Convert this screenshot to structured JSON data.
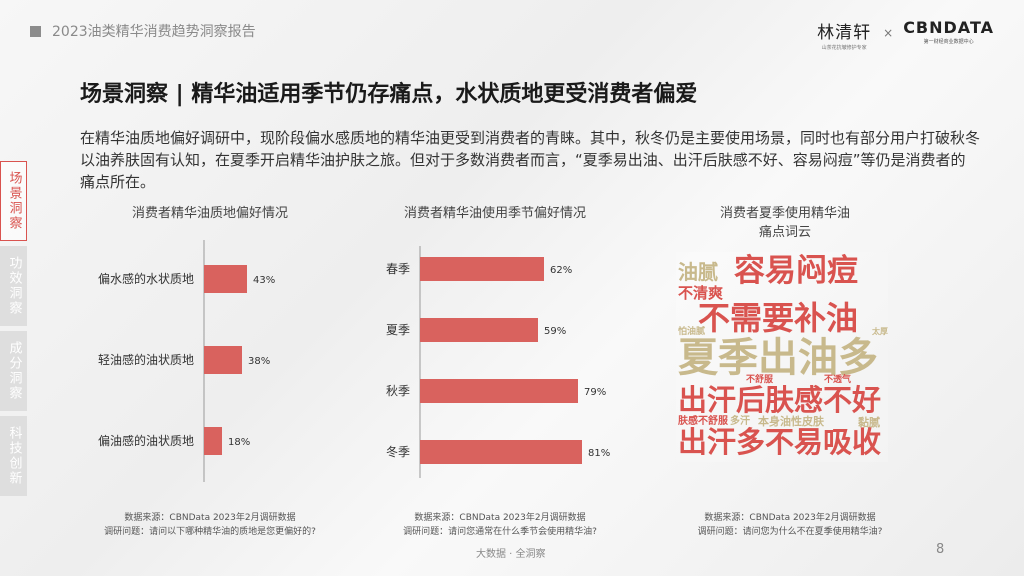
{
  "header": {
    "report_title": "2023油类精华消费趋势洞察报告"
  },
  "logos": {
    "brand1": {
      "name": "林清轩",
      "tagline": "山茶花抗皱修护专家"
    },
    "separator": "×",
    "brand2": {
      "name": "CBNDATA",
      "tagline": "第一财经商业数据中心"
    }
  },
  "page": {
    "title": "场景洞察 | 精华油适用季节仍存痛点，水状质地更受消费者偏爱",
    "description": "在精华油质地偏好调研中，现阶段偏水感质地的精华油更受到消费者的青睐。其中，秋冬仍是主要使用场景，同时也有部分用户打破秋冬以油养肤固有认知，在夏季开启精华油护肤之旅。但对于多数消费者而言，“夏季易出油、出汗后肤感不好、容易闷痘”等仍是消费者的痛点所在。",
    "footer": "大数据 · 全洞察",
    "page_number": "8"
  },
  "side_nav": [
    {
      "label": "场景洞察",
      "active": true
    },
    {
      "label": "功效洞察",
      "active": false
    },
    {
      "label": "成分洞察",
      "active": false
    },
    {
      "label": "科技创新",
      "active": false
    }
  ],
  "colors": {
    "bar": "#d9625e",
    "accent": "#d9534f"
  },
  "chart_data": [
    {
      "type": "bar",
      "orientation": "horizontal",
      "title": "消费者精华油质地偏好情况",
      "categories": [
        "偏水感的水状质地",
        "轻油感的油状质地",
        "偏油感的油状质地"
      ],
      "values": [
        43,
        38,
        18
      ],
      "value_labels": [
        "43%",
        "38%",
        "18%"
      ],
      "grid": false,
      "source": "数据来源：CBNData 2023年2月调研数据",
      "question": "调研问题：请问以下哪种精华油的质地是您更偏好的?"
    },
    {
      "type": "bar",
      "orientation": "horizontal",
      "title": "消费者精华油使用季节偏好情况",
      "categories": [
        "春季",
        "夏季",
        "秋季",
        "冬季"
      ],
      "values": [
        62,
        59,
        79,
        81
      ],
      "value_labels": [
        "62%",
        "59%",
        "79%",
        "81%"
      ],
      "grid": false,
      "source": "数据来源：CBNData 2023年2月调研数据",
      "question": "调研问题：请问您通常在什么季节会使用精华油?"
    }
  ],
  "wordcloud": {
    "title_line1": "消费者夏季使用精华油",
    "title_line2": "痛点词云",
    "source": "数据来源：CBNData 2023年2月调研数据",
    "question": "调研问题：请问您为什么不在夏季使用精华油?",
    "words": [
      {
        "text": "容易闷痘",
        "color": "#d9534f"
      },
      {
        "text": "油腻",
        "color": "#c8b98c"
      },
      {
        "text": "不清爽",
        "color": "#d9534f"
      },
      {
        "text": "不需要补油",
        "color": "#d9534f"
      },
      {
        "text": "夏季出油多",
        "color": "#c8b98c"
      },
      {
        "text": "出汗后肤感不好",
        "color": "#d9534f"
      },
      {
        "text": "出汗多不易吸收",
        "color": "#d9534f"
      },
      {
        "text": "本身油性皮肤",
        "color": "#c8b98c"
      },
      {
        "text": "肤感不舒服",
        "color": "#d9534f"
      },
      {
        "text": "黏腻",
        "color": "#c8b98c"
      },
      {
        "text": "不舒服",
        "color": "#d9534f"
      },
      {
        "text": "不透气",
        "color": "#d9534f"
      },
      {
        "text": "怕油腻",
        "color": "#c8b98c"
      },
      {
        "text": "太厚",
        "color": "#c8b98c"
      },
      {
        "text": "多汗",
        "color": "#c8b98c"
      }
    ]
  }
}
